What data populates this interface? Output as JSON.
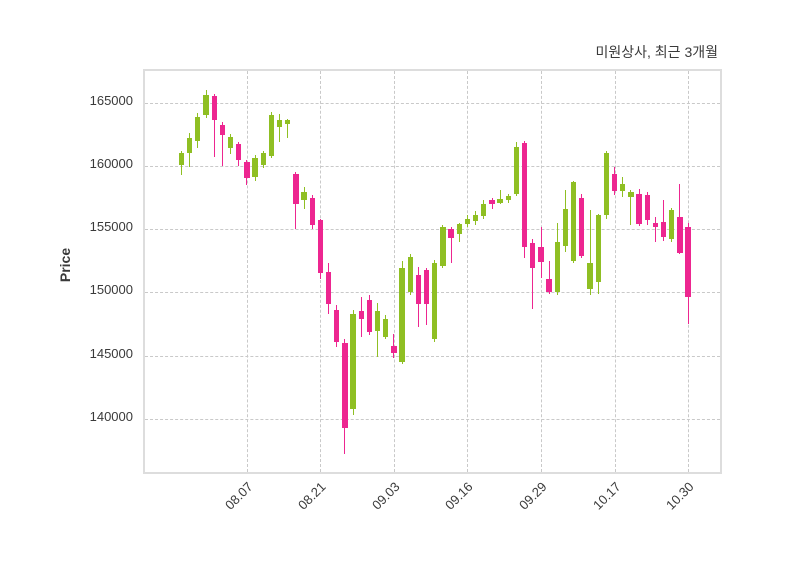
{
  "title": "미원상사, 최근 3개월",
  "axes": {
    "y_label": "Price",
    "y_ticks": [
      165000,
      160000,
      155000,
      150000,
      145000,
      140000
    ],
    "x_tick_labels": [
      "08.07",
      "08.21",
      "09.03",
      "09.16",
      "09.29",
      "10.17",
      "10.30"
    ]
  },
  "chart_data": {
    "type": "candlestick",
    "title": "미원상사, 최근 3개월",
    "ylabel": "Price",
    "xlabel": "",
    "grid": true,
    "grid_style": "dashed",
    "legend": "none",
    "y_range": [
      135800,
      167500
    ],
    "y_ticks": [
      140000,
      145000,
      150000,
      155000,
      160000,
      165000
    ],
    "x_tick_labels": [
      "08.07",
      "08.21",
      "09.03",
      "09.16",
      "09.29",
      "10.17",
      "10.30"
    ],
    "x_tick_candle_indices": [
      8,
      17,
      26,
      35,
      44,
      53,
      62
    ],
    "up_color": "#8fbf23",
    "down_color": "#ed2690",
    "columns": [
      "open",
      "high",
      "low",
      "close"
    ],
    "candles": [
      [
        160100,
        161200,
        159300,
        161000
      ],
      [
        161000,
        162600,
        159900,
        162200
      ],
      [
        162000,
        164200,
        161400,
        163900
      ],
      [
        164000,
        166000,
        163800,
        165600
      ],
      [
        165500,
        165700,
        160700,
        163600
      ],
      [
        163200,
        163500,
        160000,
        162400
      ],
      [
        161400,
        162500,
        160900,
        162300
      ],
      [
        161700,
        161900,
        160000,
        160500
      ],
      [
        160300,
        160500,
        158500,
        159000
      ],
      [
        159100,
        160900,
        158800,
        160600
      ],
      [
        160100,
        161200,
        159800,
        161000
      ],
      [
        160800,
        164300,
        160600,
        164000
      ],
      [
        163100,
        164100,
        161900,
        163600
      ],
      [
        163300,
        163700,
        162200,
        163600
      ],
      [
        159400,
        159500,
        155000,
        157000
      ],
      [
        157300,
        158300,
        156600,
        157900
      ],
      [
        157500,
        157700,
        155000,
        155300
      ],
      [
        155700,
        155800,
        151100,
        151500
      ],
      [
        151600,
        152300,
        148300,
        149100
      ],
      [
        148600,
        149000,
        145700,
        146100
      ],
      [
        146000,
        146300,
        137200,
        139300
      ],
      [
        140800,
        148600,
        140300,
        148300
      ],
      [
        148500,
        149600,
        146500,
        147900
      ],
      [
        149400,
        149800,
        146600,
        146900
      ],
      [
        146900,
        149200,
        144900,
        148500
      ],
      [
        146500,
        148200,
        146300,
        147900
      ],
      [
        145800,
        146700,
        144800,
        145200
      ],
      [
        144500,
        152500,
        144300,
        151900
      ],
      [
        150000,
        153000,
        149800,
        152800
      ],
      [
        151400,
        152000,
        147300,
        149100
      ],
      [
        151800,
        151900,
        147400,
        149100
      ],
      [
        146300,
        152600,
        146100,
        152300
      ],
      [
        152100,
        155300,
        151900,
        155200
      ],
      [
        155000,
        155200,
        152300,
        154300
      ],
      [
        154600,
        155500,
        154000,
        155400
      ],
      [
        155400,
        156100,
        155200,
        155800
      ],
      [
        155600,
        156400,
        155300,
        156100
      ],
      [
        156000,
        157300,
        155800,
        157000
      ],
      [
        157300,
        157500,
        156600,
        157000
      ],
      [
        157100,
        158100,
        157000,
        157400
      ],
      [
        157300,
        157800,
        157100,
        157600
      ],
      [
        157800,
        161900,
        157600,
        161500
      ],
      [
        161800,
        162000,
        152700,
        153600
      ],
      [
        153900,
        154200,
        148700,
        151900
      ],
      [
        153600,
        155200,
        151100,
        152400
      ],
      [
        151100,
        152500,
        149900,
        150000
      ],
      [
        150000,
        155500,
        149800,
        154000
      ],
      [
        153700,
        158100,
        153200,
        156600
      ],
      [
        152500,
        158800,
        152300,
        158700
      ],
      [
        157500,
        157800,
        152700,
        152900
      ],
      [
        150300,
        156500,
        149800,
        152300
      ],
      [
        150800,
        156200,
        149900,
        156100
      ],
      [
        156100,
        161200,
        155800,
        161000
      ],
      [
        159400,
        159900,
        157700,
        158000
      ],
      [
        158000,
        159100,
        157500,
        158600
      ],
      [
        157500,
        158100,
        155300,
        157900
      ],
      [
        157800,
        158200,
        155200,
        155400
      ],
      [
        157700,
        157900,
        155300,
        155700
      ],
      [
        155500,
        156000,
        154000,
        155200
      ],
      [
        155600,
        157300,
        154100,
        154400
      ],
      [
        154200,
        156700,
        154000,
        156500
      ],
      [
        156000,
        158600,
        153000,
        153100
      ],
      [
        155200,
        155500,
        147500,
        149600
      ]
    ]
  }
}
